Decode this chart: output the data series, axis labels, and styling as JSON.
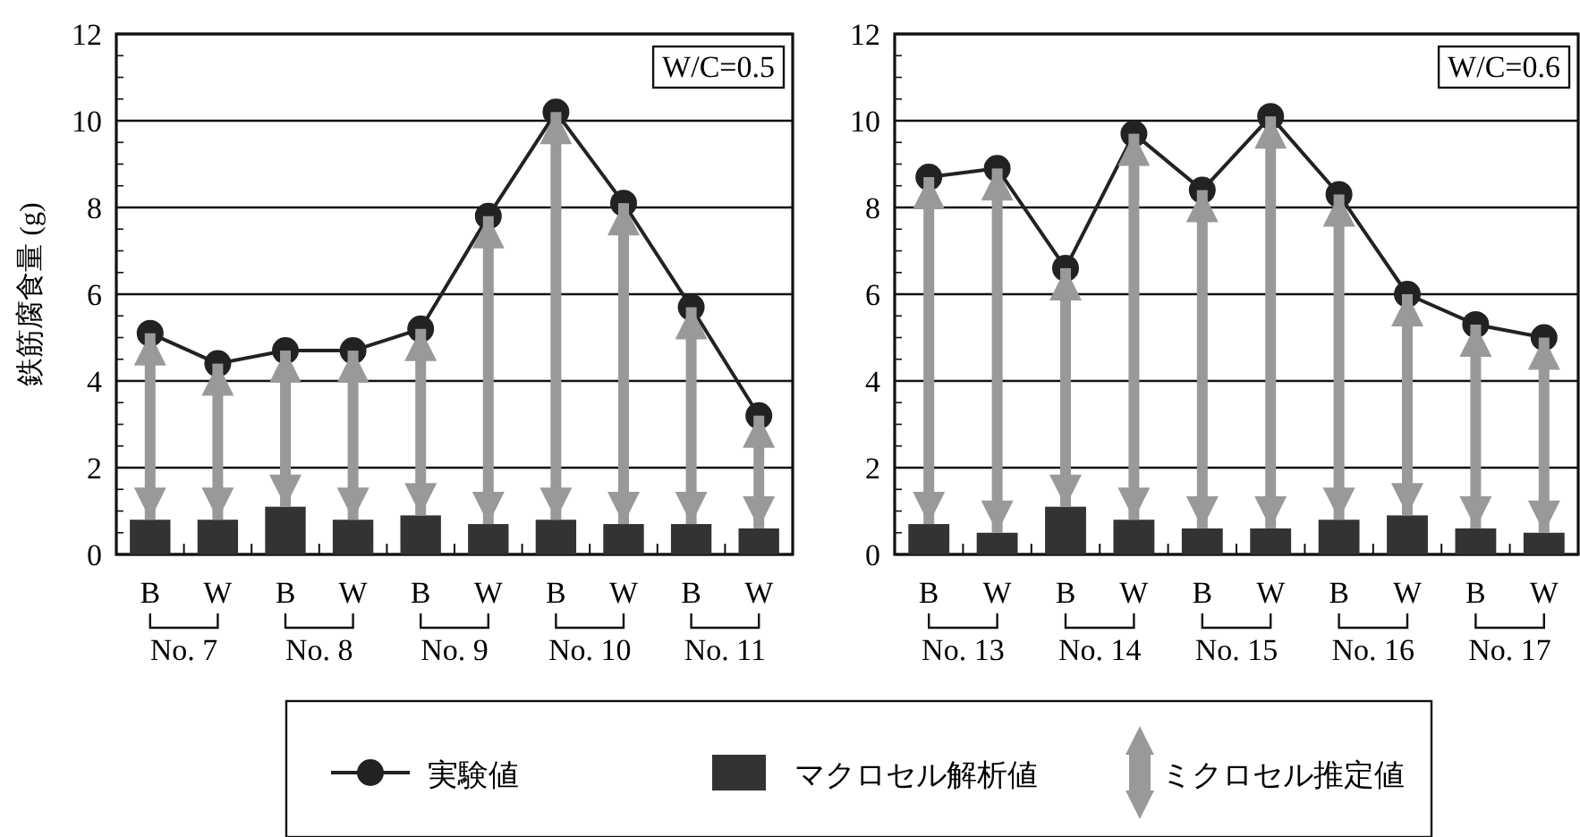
{
  "chart_data": [
    {
      "type": "bar",
      "ylabel": "鉄筋腐食量 (g)",
      "categories": [
        "B",
        "W",
        "B",
        "W",
        "B",
        "W",
        "B",
        "W",
        "B",
        "W"
      ],
      "ylim": [
        0,
        12
      ],
      "yticks": [
        0,
        2,
        4,
        6,
        8,
        10,
        12
      ],
      "grid": "y",
      "legend": "bottom",
      "stacked": true,
      "annotations": [
        "W/C=0.5",
        "No. 7",
        "No. 8",
        "No. 9",
        "No. 10",
        "No. 11"
      ],
      "series": [
        {
          "name": "実験値",
          "type": "line",
          "color": "#222222",
          "marker": "circle",
          "values": [
            5.1,
            4.4,
            4.7,
            4.7,
            5.2,
            7.8,
            10.2,
            8.1,
            5.7,
            3.2
          ]
        },
        {
          "name": "マクロセル解析値",
          "color": "#333333",
          "values": [
            0.8,
            0.8,
            1.1,
            0.8,
            0.9,
            0.7,
            0.8,
            0.7,
            0.7,
            0.6
          ]
        },
        {
          "name": "ミクロセル推定値",
          "color": "#999999",
          "values": [
            4.3,
            3.6,
            3.6,
            3.9,
            4.3,
            7.1,
            9.4,
            7.4,
            5.0,
            2.6
          ]
        }
      ]
    },
    {
      "type": "bar",
      "categories": [
        "B",
        "W",
        "B",
        "W",
        "B",
        "W",
        "B",
        "W",
        "B",
        "W"
      ],
      "ylim": [
        0,
        12
      ],
      "yticks": [
        0,
        2,
        4,
        6,
        8,
        10,
        12
      ],
      "grid": "y",
      "stacked": true,
      "annotations": [
        "W/C=0.6",
        "No. 13",
        "No. 14",
        "No. 15",
        "No. 16",
        "No. 17"
      ],
      "series": [
        {
          "type": "line",
          "color": "#222222",
          "marker": "circle",
          "values": [
            8.7,
            8.9,
            6.6,
            9.7,
            8.4,
            10.1,
            8.3,
            6.0,
            5.3,
            5.0
          ]
        },
        {
          "color": "#333333",
          "values": [
            0.7,
            0.5,
            1.1,
            0.8,
            0.6,
            0.6,
            0.8,
            0.9,
            0.6,
            0.5
          ]
        },
        {
          "color": "#999999",
          "values": [
            8.0,
            8.4,
            5.5,
            8.9,
            7.8,
            9.5,
            7.5,
            5.1,
            4.7,
            4.5
          ]
        }
      ]
    }
  ]
}
